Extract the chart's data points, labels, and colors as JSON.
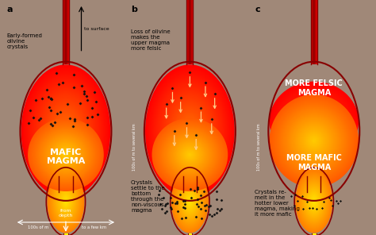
{
  "bg_color": "#a08878",
  "colors": {
    "dark_red": "#880000",
    "red": "#CC1100",
    "orange": "#FF6600",
    "yellow_orange": "#FFAA00",
    "yellow": "#FFDD00",
    "bright_yellow": "#FFFF44",
    "outline": "#882200"
  },
  "panel_a": {
    "label": "a",
    "text_early": "Early-formed\nolivine\ncrystals",
    "text_mafic": "MAFIC\nMAGMA",
    "text_surface": "to surface",
    "text_depth": "from\ndepth",
    "text_width_left": "100s of m",
    "text_width_right": "to a few km",
    "text_height_label": "100s of m to several km"
  },
  "panel_b": {
    "label": "b",
    "text_top": "Loss of olivine\nmakes the\nupper magma\nmore felsic",
    "text_bottom": "Crystals\nsettle to the\nbottom\nthrough the\nnon-viscous\nmagma"
  },
  "panel_c": {
    "label": "c",
    "text_felsic": "MORE FELSIC\nMAGMA",
    "text_mafic": "MORE MAFIC\nMAGMA",
    "text_note": "Crystals re-\nmelt in the\nhotter lower\nmagma, making\nit more mafic"
  }
}
